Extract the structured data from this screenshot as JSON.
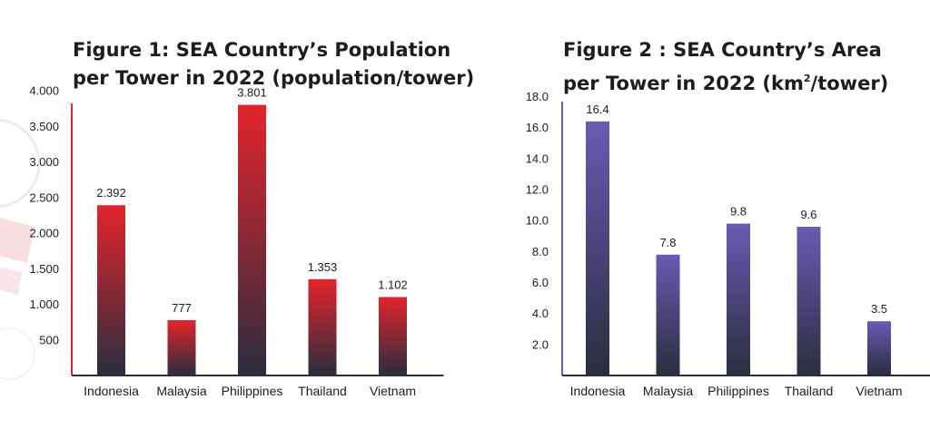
{
  "chart_data": [
    {
      "type": "bar",
      "title_line1": "Figure 1: SEA Country’s Population",
      "title_line2": "per Tower in 2022 (population/tower)",
      "categories": [
        "Indonesia",
        "Malaysia",
        "Philippines",
        "Thailand",
        "Vietnam"
      ],
      "values": [
        2392,
        777,
        3801,
        1353,
        1102
      ],
      "value_labels": [
        "2.392",
        "777",
        "3.801",
        "1.353",
        "1.102"
      ],
      "yticks": [
        500,
        1000,
        1500,
        2000,
        2500,
        3000,
        3500,
        4000
      ],
      "ytick_labels": [
        "500",
        "1.000",
        "1.500",
        "2.000",
        "2.500",
        "3.000",
        "3.500",
        "4.000"
      ],
      "ylim": [
        0,
        4000
      ],
      "xlabel": "",
      "ylabel": "",
      "grid": false,
      "bar_color_top": "#e3242b",
      "bar_color_bottom": "#2a2d3e",
      "axis_color": "#e3242b"
    },
    {
      "type": "bar",
      "title_line1": "Figure 2 : SEA Country’s Area",
      "title_line2_pre": "per Tower in 2022 (km",
      "title_line2_sup": "2",
      "title_line2_post": "/tower)",
      "categories": [
        "Indonesia",
        "Malaysia",
        "Philippines",
        "Thailand",
        "Vietnam"
      ],
      "values": [
        16.4,
        7.8,
        9.8,
        9.6,
        3.5
      ],
      "value_labels": [
        "16.4",
        "7.8",
        "9.8",
        "9.6",
        "3.5"
      ],
      "yticks": [
        2,
        4,
        6,
        8,
        10,
        12,
        14,
        16,
        18
      ],
      "ytick_labels": [
        "2.0",
        "4.0",
        "6.0",
        "8.0",
        "10.0",
        "12.0",
        "14.0",
        "16.0",
        "18.0"
      ],
      "ylim": [
        0,
        18
      ],
      "xlabel": "",
      "ylabel": "",
      "grid": false,
      "bar_color_top": "#6a5ab4",
      "bar_color_bottom": "#2a2d3e",
      "axis_color": "#6a5ab4"
    }
  ]
}
